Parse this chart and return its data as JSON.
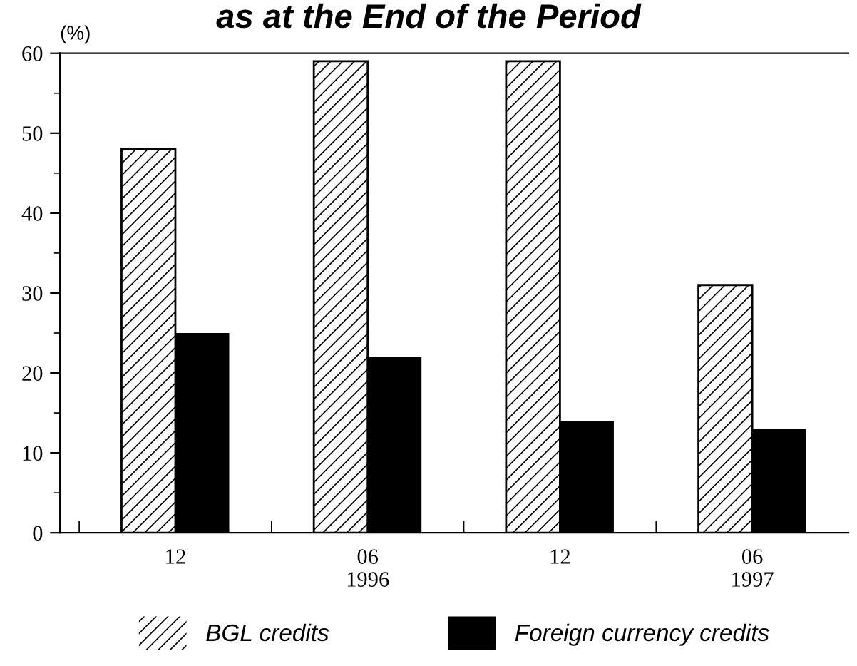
{
  "chart_data": {
    "type": "bar",
    "title": "as at the End of the Period",
    "ylabel": "(%)",
    "categories": [
      "12",
      "06\n1996",
      "12",
      "06\n1997"
    ],
    "series": [
      {
        "name": "BGL credits",
        "color": "#ffffff",
        "values": [
          48,
          59,
          59,
          31
        ]
      },
      {
        "name": "Foreign currency credits",
        "color": "#000000",
        "values": [
          25,
          22,
          14,
          13
        ]
      }
    ],
    "ylim": [
      0,
      60
    ],
    "yticks": [
      0,
      10,
      20,
      30,
      40,
      50,
      60
    ],
    "grid": false,
    "legend": "bottom"
  }
}
